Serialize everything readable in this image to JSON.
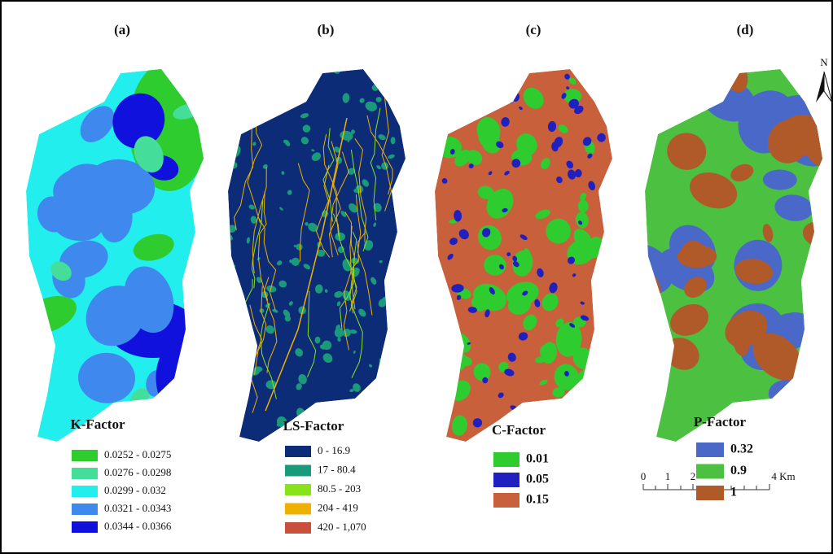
{
  "panels": [
    {
      "label": "(a)",
      "legend": {
        "title": "K-Factor",
        "items": [
          {
            "label": "0.0252 - 0.0275",
            "color": "#2ecc2e"
          },
          {
            "label": "0.0276 - 0.0298",
            "color": "#44dd99"
          },
          {
            "label": "0.0299 - 0.032",
            "color": "#22eeee"
          },
          {
            "label": "0.0321 - 0.0343",
            "color": "#3f88ee"
          },
          {
            "label": "0.0344 - 0.0366",
            "color": "#1111dd"
          }
        ]
      }
    },
    {
      "label": "(b)",
      "legend": {
        "title": "LS-Factor",
        "items": [
          {
            "label": "0 - 16.9",
            "color": "#0d2c78"
          },
          {
            "label": "17 - 80.4",
            "color": "#1a9a7a"
          },
          {
            "label": "80.5 - 203",
            "color": "#88e31a"
          },
          {
            "label": "204 - 419",
            "color": "#f0b000"
          },
          {
            "label": "420 - 1,070",
            "color": "#c8503c"
          }
        ]
      }
    },
    {
      "label": "(c)",
      "legend": {
        "title": "C-Factor",
        "items": [
          {
            "label": "0.01",
            "color": "#2ecc2e"
          },
          {
            "label": "0.05",
            "color": "#2020c0"
          },
          {
            "label": "0.15",
            "color": "#c8603c"
          }
        ]
      }
    },
    {
      "label": "(d)",
      "legend": {
        "title": "P-Factor",
        "items": [
          {
            "label": "0.32",
            "color": "#4a68c8"
          },
          {
            "label": "0.9",
            "color": "#4cc040"
          },
          {
            "label": "1",
            "color": "#b05a2a"
          }
        ]
      }
    }
  ],
  "scale_bar": {
    "labels": [
      "0",
      "1",
      "2",
      "4 Km"
    ]
  },
  "north_arrow": {
    "label": "N"
  }
}
